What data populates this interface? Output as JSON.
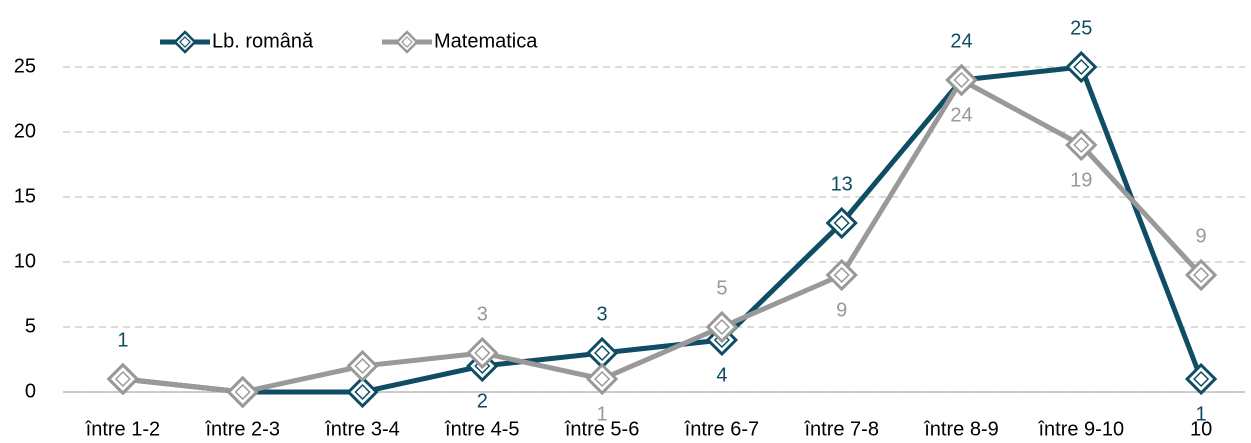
{
  "chart_data": {
    "type": "line",
    "categories": [
      "între 1-2",
      "între 2-3",
      "între 3-4",
      "între 4-5",
      "între 5-6",
      "între 6-7",
      "între 7-8",
      "între 8-9",
      "între 9-10",
      "10"
    ],
    "series": [
      {
        "name": "Lb. română",
        "color": "#0e4d64",
        "values": [
          1,
          0,
          0,
          2,
          3,
          4,
          13,
          24,
          25,
          1
        ],
        "value_labels": [
          "1",
          null,
          null,
          "2",
          "3",
          "4",
          "13",
          "24",
          "25",
          "1"
        ]
      },
      {
        "name": "Matematica",
        "color": "#999999",
        "values": [
          1,
          0,
          2,
          3,
          1,
          5,
          9,
          24,
          19,
          9
        ],
        "value_labels": [
          null,
          null,
          null,
          "3",
          "1",
          "5",
          "9",
          "24",
          "19",
          "9"
        ]
      }
    ],
    "ylim": [
      0,
      25
    ],
    "yticks": [
      0,
      5,
      10,
      15,
      20,
      25
    ],
    "grid": true,
    "legend": "top-left"
  }
}
